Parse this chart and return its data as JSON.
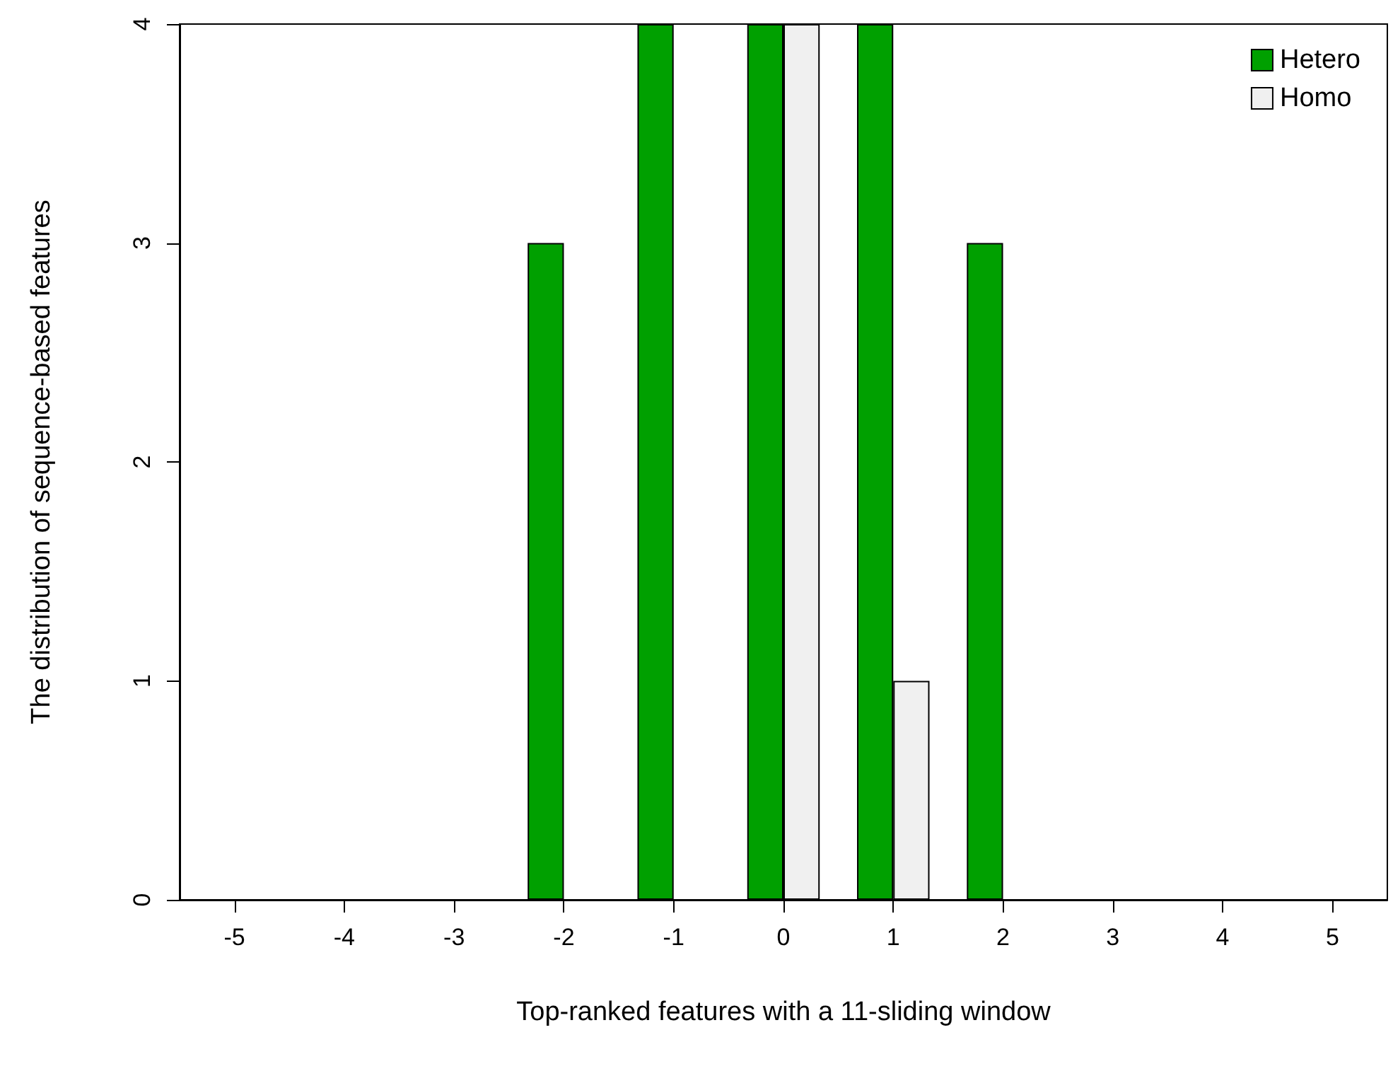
{
  "chart_data": {
    "type": "bar",
    "xlabel": "Top-ranked features with a 11-sliding window",
    "ylabel": "The distribution of sequence-based features",
    "categories": [
      "-5",
      "-4",
      "-3",
      "-2",
      "-1",
      "0",
      "1",
      "2",
      "3",
      "4",
      "5"
    ],
    "series": [
      {
        "name": "Hetero",
        "color": "#00a000",
        "values": [
          0,
          0,
          0,
          3,
          4,
          4,
          4,
          3,
          0,
          0,
          0
        ]
      },
      {
        "name": "Homo",
        "color": "#f0f0f0",
        "values": [
          0,
          0,
          0,
          0,
          0,
          4,
          1,
          0,
          0,
          0,
          0
        ]
      }
    ],
    "ylim": [
      0,
      4
    ],
    "yticks": [
      0,
      1,
      2,
      3,
      4
    ],
    "grid": false,
    "legend": "top right"
  }
}
